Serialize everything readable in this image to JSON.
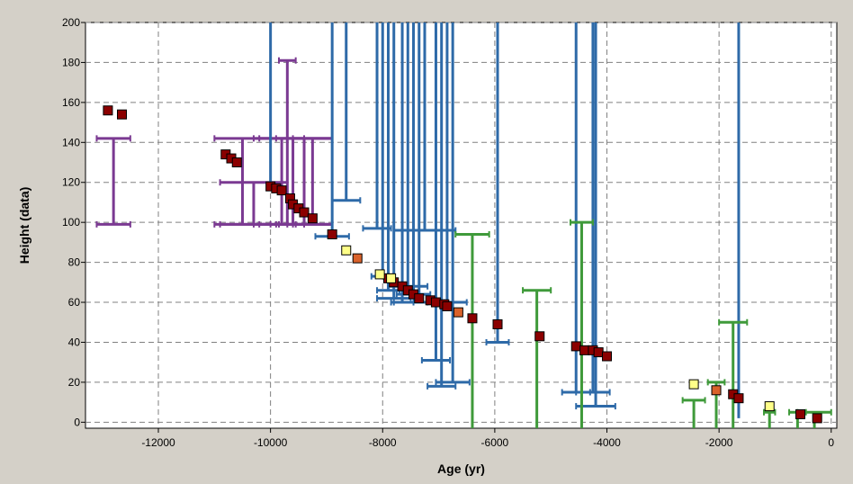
{
  "chart_data": {
    "type": "scatter",
    "xlabel": "Age (yr)",
    "ylabel": "Height (data)",
    "xlim": [
      -13300,
      100
    ],
    "ylim": [
      -3,
      200
    ],
    "xticks": [
      -12000,
      -10000,
      -8000,
      -6000,
      -4000,
      -2000,
      0
    ],
    "yticks": [
      0,
      20,
      40,
      60,
      80,
      100,
      120,
      140,
      160,
      180,
      200
    ],
    "grid": true,
    "colors": {
      "purple": "#7b3a92",
      "blue": "#2e6aa8",
      "green": "#3f9a3a",
      "dark_red": "#8b0000",
      "orange": "#d9622b",
      "yellow": "#ffff88",
      "grid": "#808080",
      "plot_bg": "#ffffff",
      "frame_bg": "#d4d0c8"
    },
    "series": [
      {
        "marker": "range",
        "color": "purple",
        "points": [
          {
            "x": -12800,
            "xerr": 300,
            "ymin": 99,
            "ymax": 142
          },
          {
            "x": -10500,
            "xerr": 500,
            "ymin": 99,
            "ymax": 142
          },
          {
            "x": -10300,
            "xerr": 600,
            "ymin": 99,
            "ymax": 120
          },
          {
            "x": -9800,
            "xerr": 400,
            "ymin": 99,
            "ymax": 142
          },
          {
            "x": -9600,
            "xerr": 700,
            "ymin": 99,
            "ymax": 142
          },
          {
            "x": -9700,
            "xerr": 150,
            "ymin": 99,
            "ymax": 181
          },
          {
            "x": -9400,
            "xerr": 500,
            "ymin": 99,
            "ymax": 142
          },
          {
            "x": -9250,
            "xerr": 350,
            "ymin": 99,
            "ymax": 142
          }
        ]
      },
      {
        "marker": "range",
        "color": "blue",
        "points": [
          {
            "x": -10000,
            "xerr": 0,
            "ymin": 118,
            "ymax": 200
          },
          {
            "x": -8900,
            "xerr": 300,
            "ymin": 93,
            "ymax": 200
          },
          {
            "x": -8650,
            "xerr": 250,
            "ymin": 111,
            "ymax": 200
          },
          {
            "x": -8100,
            "xerr": 250,
            "ymin": 97,
            "ymax": 200
          },
          {
            "x": -8000,
            "xerr": 200,
            "ymin": 73,
            "ymax": 200
          },
          {
            "x": -7900,
            "xerr": 200,
            "ymin": 66,
            "ymax": 200
          },
          {
            "x": -7800,
            "xerr": 300,
            "ymin": 62,
            "ymax": 200
          },
          {
            "x": -7650,
            "xerr": 200,
            "ymin": 60,
            "ymax": 200
          },
          {
            "x": -7550,
            "xerr": 350,
            "ymin": 68,
            "ymax": 200
          },
          {
            "x": -7450,
            "xerr": 300,
            "ymin": 64,
            "ymax": 200
          },
          {
            "x": -7350,
            "xerr": 450,
            "ymin": 60,
            "ymax": 200
          },
          {
            "x": -7250,
            "xerr": 550,
            "ymin": 96,
            "ymax": 200
          },
          {
            "x": -7050,
            "xerr": 250,
            "ymin": 31,
            "ymax": 200
          },
          {
            "x": -6950,
            "xerr": 250,
            "ymin": 18,
            "ymax": 200
          },
          {
            "x": -6850,
            "xerr": 350,
            "ymin": 60,
            "ymax": 200
          },
          {
            "x": -6750,
            "xerr": 300,
            "ymin": 20,
            "ymax": 200
          },
          {
            "x": -5950,
            "xerr": 200,
            "ymin": 40,
            "ymax": 200
          },
          {
            "x": -4550,
            "xerr": 250,
            "ymin": 15,
            "ymax": 200
          },
          {
            "x": -4250,
            "xerr": 300,
            "ymin": 15,
            "ymax": 200
          },
          {
            "x": -4200,
            "xerr": 350,
            "ymin": 8,
            "ymax": 200
          },
          {
            "x": -1650,
            "xerr": 0,
            "ymin": 2,
            "ymax": 200
          }
        ]
      },
      {
        "marker": "range",
        "color": "green",
        "points": [
          {
            "x": -6400,
            "xerr": 300,
            "ymin": -3,
            "ymax": 94
          },
          {
            "x": -5250,
            "xerr": 250,
            "ymin": -3,
            "ymax": 66
          },
          {
            "x": -4450,
            "xerr": 200,
            "ymin": -3,
            "ymax": 100
          },
          {
            "x": -2450,
            "xerr": 200,
            "ymin": -3,
            "ymax": 11
          },
          {
            "x": -2050,
            "xerr": 150,
            "ymin": -3,
            "ymax": 20
          },
          {
            "x": -1750,
            "xerr": 250,
            "ymin": -3,
            "ymax": 50
          },
          {
            "x": -1100,
            "xerr": 100,
            "ymin": -3,
            "ymax": 5
          },
          {
            "x": -600,
            "xerr": 150,
            "ymin": -3,
            "ymax": 5
          },
          {
            "x": -300,
            "xerr": 300,
            "ymin": -3,
            "ymax": 5
          }
        ]
      },
      {
        "marker": "square",
        "color": "dark_red",
        "points": [
          {
            "x": -12900,
            "y": 156
          },
          {
            "x": -12650,
            "y": 154
          },
          {
            "x": -10800,
            "y": 134
          },
          {
            "x": -10700,
            "y": 132
          },
          {
            "x": -10600,
            "y": 130
          },
          {
            "x": -10000,
            "y": 118
          },
          {
            "x": -9900,
            "y": 117
          },
          {
            "x": -9800,
            "y": 116
          },
          {
            "x": -9650,
            "y": 112
          },
          {
            "x": -9600,
            "y": 109
          },
          {
            "x": -9500,
            "y": 107
          },
          {
            "x": -9400,
            "y": 105
          },
          {
            "x": -9250,
            "y": 102
          },
          {
            "x": -8900,
            "y": 94
          },
          {
            "x": -7900,
            "y": 72
          },
          {
            "x": -7800,
            "y": 70
          },
          {
            "x": -7650,
            "y": 68
          },
          {
            "x": -7550,
            "y": 66
          },
          {
            "x": -7450,
            "y": 64
          },
          {
            "x": -7350,
            "y": 62
          },
          {
            "x": -7150,
            "y": 61
          },
          {
            "x": -7050,
            "y": 60
          },
          {
            "x": -6900,
            "y": 59
          },
          {
            "x": -6850,
            "y": 58
          },
          {
            "x": -6400,
            "y": 52
          },
          {
            "x": -5950,
            "y": 49
          },
          {
            "x": -5200,
            "y": 43
          },
          {
            "x": -4550,
            "y": 38
          },
          {
            "x": -4400,
            "y": 36
          },
          {
            "x": -4250,
            "y": 36
          },
          {
            "x": -4150,
            "y": 35
          },
          {
            "x": -4000,
            "y": 33
          },
          {
            "x": -1750,
            "y": 14
          },
          {
            "x": -1650,
            "y": 12
          },
          {
            "x": -550,
            "y": 4
          },
          {
            "x": -250,
            "y": 2
          }
        ]
      },
      {
        "marker": "square",
        "color": "orange",
        "points": [
          {
            "x": -8450,
            "y": 82
          },
          {
            "x": -6650,
            "y": 55
          },
          {
            "x": -2050,
            "y": 16
          }
        ]
      },
      {
        "marker": "square",
        "color": "yellow",
        "points": [
          {
            "x": -8650,
            "y": 86
          },
          {
            "x": -8050,
            "y": 74
          },
          {
            "x": -7850,
            "y": 72
          },
          {
            "x": -2450,
            "y": 19
          },
          {
            "x": -1100,
            "y": 8
          }
        ]
      }
    ]
  }
}
